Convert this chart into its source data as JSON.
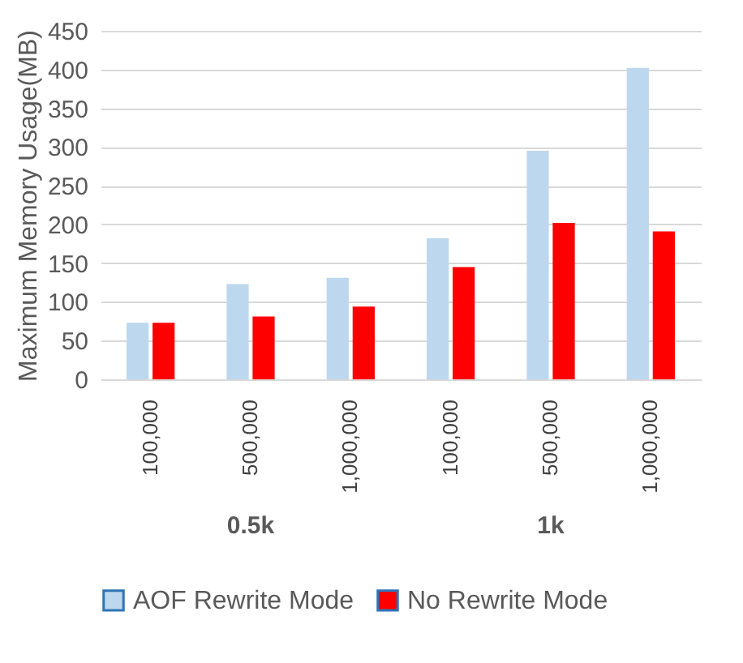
{
  "chart_data": {
    "type": "bar",
    "ylabel": "Maximum Memory Usage(MB)",
    "categories": [
      "100,000",
      "500,000",
      "1,000,000",
      "100,000",
      "500,000",
      "1,000,000"
    ],
    "series": [
      {
        "name": "AOF Rewrite Mode",
        "color": "#bdd7ee",
        "values": [
          73,
          123,
          131,
          182,
          295,
          402
        ]
      },
      {
        "name": "No Rewrite Mode",
        "color": "#ff0000",
        "values": [
          73,
          81,
          94,
          145,
          202,
          191
        ]
      }
    ],
    "ylim": [
      0,
      450
    ],
    "yticks": [
      0,
      50,
      100,
      150,
      200,
      250,
      300,
      350,
      400,
      450
    ],
    "grid": "y",
    "legend": "bottom",
    "annotations": [
      "0.5k",
      "1k"
    ]
  }
}
